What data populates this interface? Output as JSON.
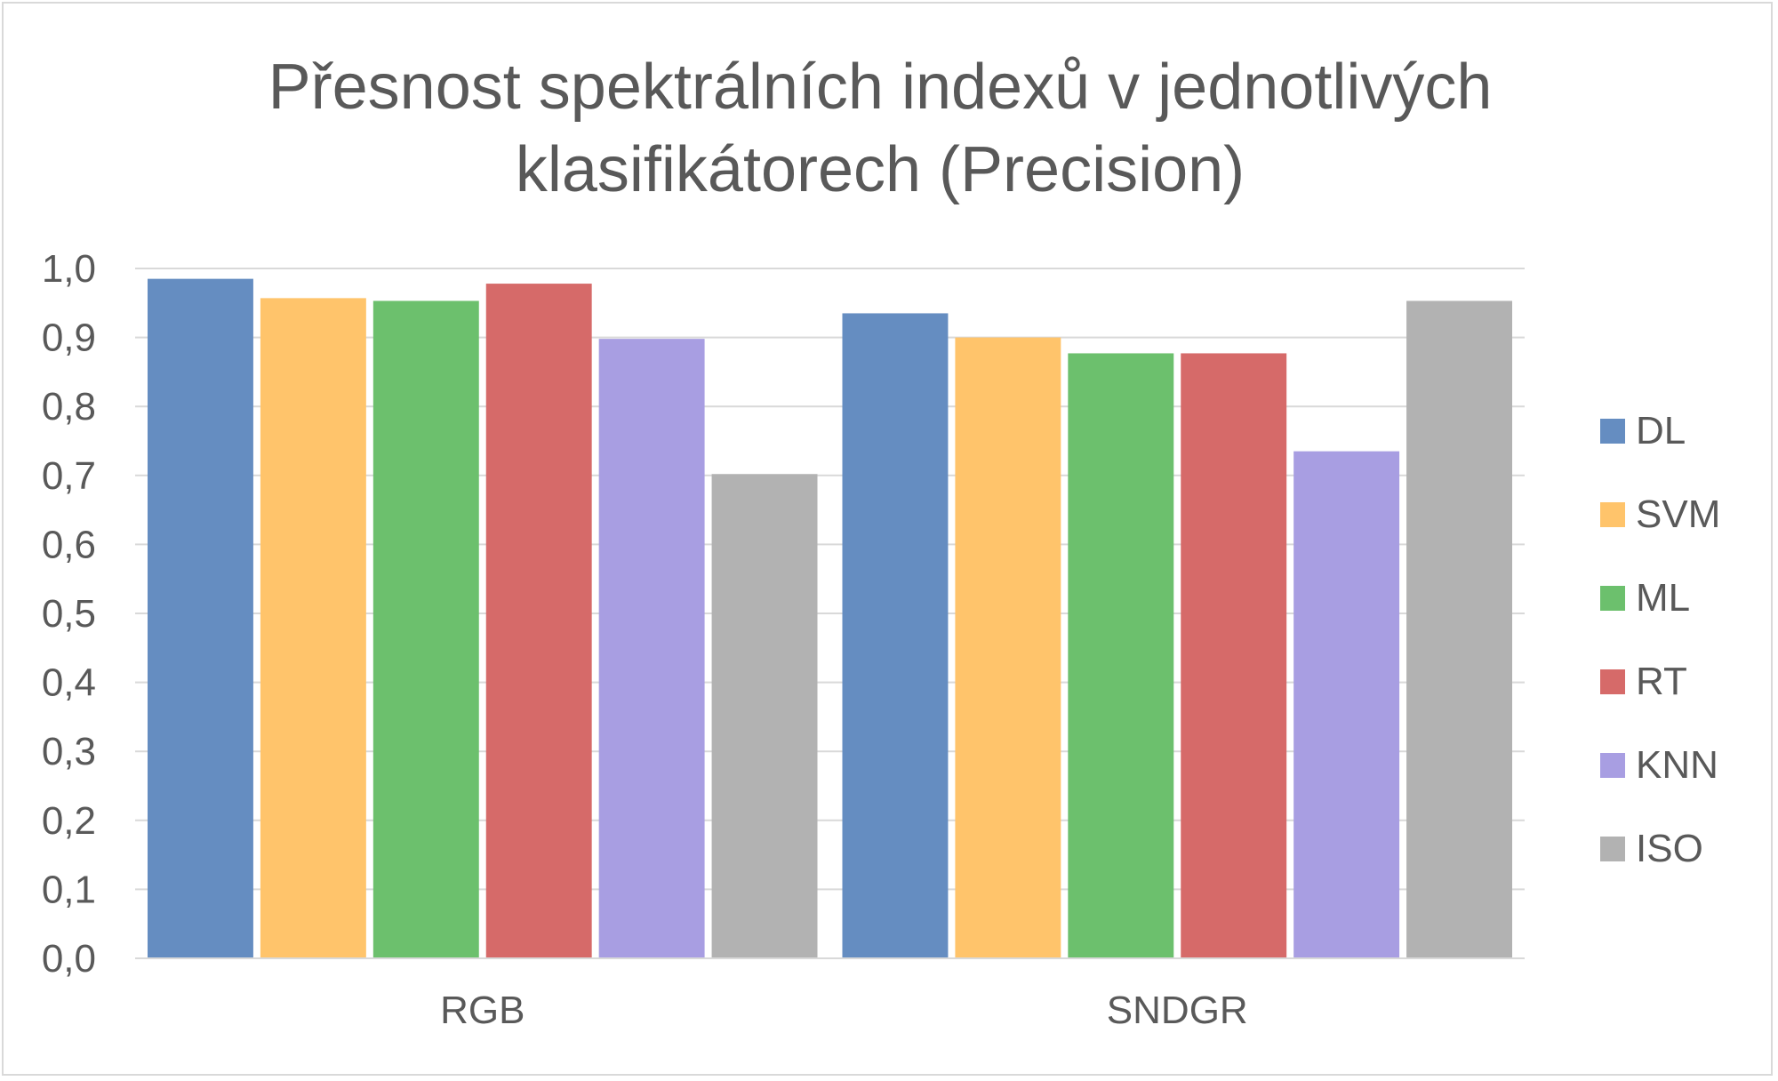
{
  "chart_data": {
    "type": "bar",
    "title_lines": [
      "Přesnost spektrálních indexů v jednotlivých",
      "klasifikátorech (Precision)"
    ],
    "xlabel": "",
    "ylabel": "",
    "categories": [
      "RGB",
      "SNDGR"
    ],
    "ylim": [
      0,
      1
    ],
    "yticks": [
      "0,0",
      "0,1",
      "0,2",
      "0,3",
      "0,4",
      "0,5",
      "0,6",
      "0,7",
      "0,8",
      "0,9",
      "1,0"
    ],
    "grid": true,
    "legend_position": "right",
    "series": [
      {
        "name": "DL",
        "color": "#658dc1",
        "values": [
          0.985,
          0.935
        ]
      },
      {
        "name": "SVM",
        "color": "#ffc46b",
        "values": [
          0.957,
          0.9
        ]
      },
      {
        "name": "ML",
        "color": "#6cc06d",
        "values": [
          0.953,
          0.877
        ]
      },
      {
        "name": "RT",
        "color": "#d66a69",
        "values": [
          0.978,
          0.877
        ]
      },
      {
        "name": "KNN",
        "color": "#a89ee2",
        "values": [
          0.898,
          0.735
        ]
      },
      {
        "name": "ISO",
        "color": "#b2b2b2",
        "values": [
          0.702,
          0.953
        ]
      }
    ]
  }
}
